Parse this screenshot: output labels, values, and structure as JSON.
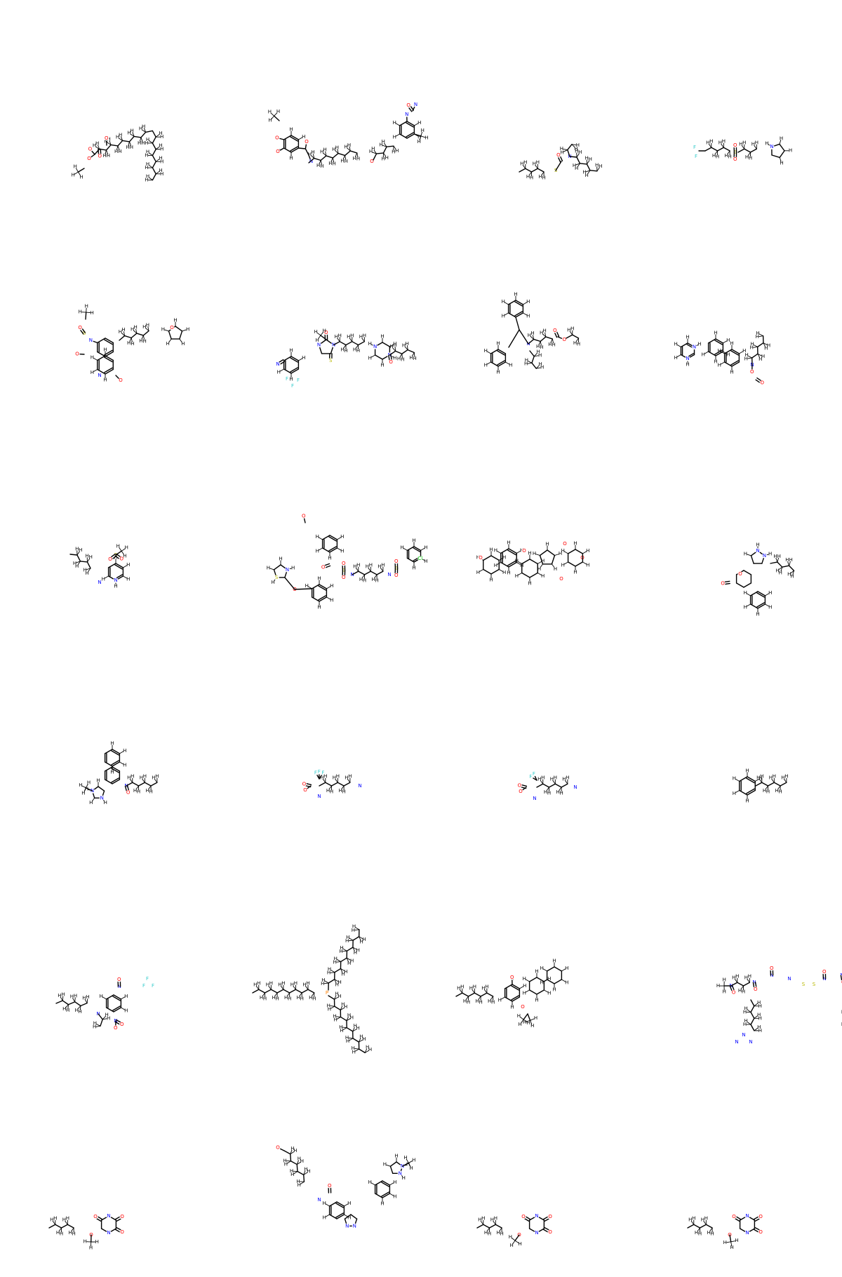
{
  "grid": {
    "columns": 4,
    "rows": 6
  },
  "colors": {
    "C": "#000000",
    "H": "#000000",
    "O": "#ff0000",
    "N": "#0000ff",
    "S": "#b8b800",
    "F": "#33cccc",
    "Cl": "#00cc00",
    "P": "#ff8000"
  },
  "molecules": [
    {
      "id": "mol-1",
      "kind": "long-chain-ester",
      "hetero": [
        "O",
        "O",
        "O",
        "O"
      ]
    },
    {
      "id": "mol-2",
      "kind": "bis-aryl-ether-amine",
      "hetero": [
        "O",
        "O",
        "O",
        "N",
        "O",
        "N",
        "N",
        "O"
      ]
    },
    {
      "id": "mol-3",
      "kind": "thiocarbamate",
      "hetero": [
        "S",
        "O",
        "N"
      ]
    },
    {
      "id": "mol-4",
      "kind": "fluoro-sulfonyl-pyrrolidine",
      "hetero": [
        "F",
        "F",
        "F",
        "S",
        "O",
        "O",
        "N"
      ]
    },
    {
      "id": "mol-5",
      "kind": "isoquinoline-sulfonamide",
      "hetero": [
        "S",
        "N",
        "O",
        "O",
        "N",
        "O",
        "O"
      ]
    },
    {
      "id": "mol-6",
      "kind": "thiohydantoin-nitrile",
      "hetero": [
        "N",
        "F",
        "F",
        "F",
        "N",
        "S",
        "O",
        "N",
        "N",
        "O"
      ]
    },
    {
      "id": "mol-7",
      "kind": "trityl-amino-ester",
      "hetero": [
        "N",
        "O",
        "O"
      ]
    },
    {
      "id": "mol-8",
      "kind": "pyrimidinyl-naphthyl-carbamate",
      "hetero": [
        "N",
        "N",
        "N",
        "O",
        "O"
      ]
    },
    {
      "id": "mol-9",
      "kind": "methylsulfonyl-pyridine-amine",
      "hetero": [
        "S",
        "O",
        "O",
        "N",
        "N"
      ]
    },
    {
      "id": "mol-10",
      "kind": "thiazole-bis-sulfonamide",
      "hetero": [
        "O",
        "S",
        "N",
        "O",
        "S",
        "O",
        "O",
        "N",
        "S",
        "O",
        "O",
        "Cl",
        "O"
      ]
    },
    {
      "id": "mol-11",
      "kind": "steroid-polyol",
      "hetero": [
        "O",
        "O",
        "O",
        "O",
        "O"
      ]
    },
    {
      "id": "mol-12",
      "kind": "pyrazolo-coumarin",
      "hetero": [
        "N",
        "N",
        "O",
        "O"
      ]
    },
    {
      "id": "mol-13",
      "kind": "imidazo-quinolinone",
      "hetero": [
        "N",
        "N",
        "N",
        "O"
      ]
    },
    {
      "id": "mol-14",
      "kind": "fluoro-amino-acid",
      "hetero": [
        "F",
        "F",
        "F",
        "O",
        "O",
        "N",
        "N"
      ]
    },
    {
      "id": "mol-15",
      "kind": "fluoro-amino-acid-isomer",
      "hetero": [
        "F",
        "F",
        "F",
        "O",
        "O",
        "N",
        "N"
      ]
    },
    {
      "id": "mol-16",
      "kind": "pentylbenzene",
      "hetero": []
    },
    {
      "id": "mol-17",
      "kind": "nitro-trifluoromethyl-aniline",
      "hetero": [
        "O",
        "N",
        "N",
        "F",
        "F",
        "F",
        "N",
        "O",
        "O"
      ]
    },
    {
      "id": "mol-18",
      "kind": "trialkylphosphine",
      "hetero": [
        "P"
      ]
    },
    {
      "id": "mol-19",
      "kind": "cannabinoid",
      "hetero": [
        "O",
        "O"
      ]
    },
    {
      "id": "mol-20",
      "kind": "disulfide-peptide",
      "hetero": [
        "N",
        "O",
        "O",
        "N",
        "N",
        "O",
        "S",
        "S",
        "N",
        "O",
        "O",
        "N",
        "N",
        "N",
        "N",
        "O"
      ]
    },
    {
      "id": "mol-21",
      "kind": "barbiturate-a",
      "hetero": [
        "O",
        "N",
        "O",
        "N",
        "O",
        "O"
      ]
    },
    {
      "id": "mol-22",
      "kind": "indazole-carboxamide",
      "hetero": [
        "O",
        "N",
        "O",
        "N",
        "N",
        "N",
        "N"
      ]
    },
    {
      "id": "mol-23",
      "kind": "barbiturate-b",
      "hetero": [
        "O",
        "N",
        "O",
        "N",
        "O",
        "O"
      ]
    },
    {
      "id": "mol-24",
      "kind": "barbiturate-c",
      "hetero": [
        "O",
        "N",
        "O",
        "N",
        "O",
        "O"
      ]
    }
  ]
}
